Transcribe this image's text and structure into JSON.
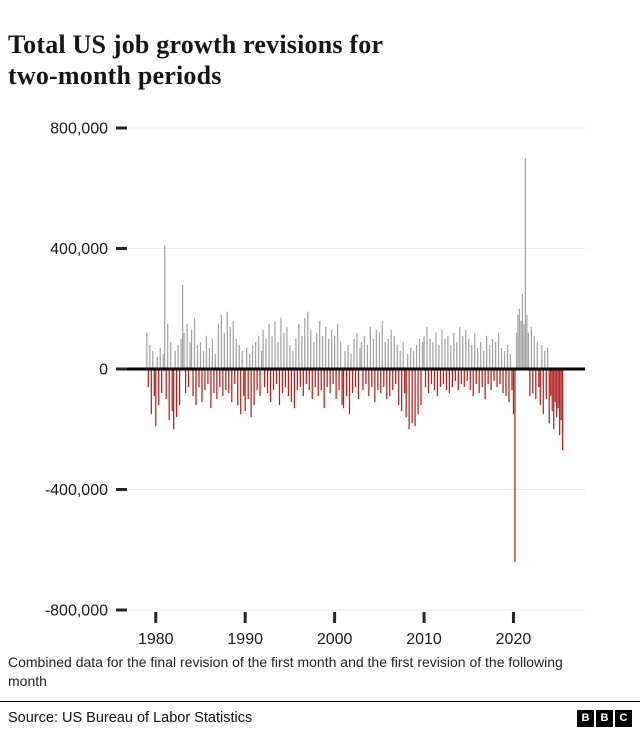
{
  "title": {
    "line1": "Total US job growth revisions for",
    "line2": "two-month periods"
  },
  "chart_data": {
    "type": "bar",
    "title": "Total US job growth revisions for two-month periods",
    "unit": "jobs",
    "start_year": 1979,
    "points_per_year": 6,
    "values_thousands": [
      120,
      -60,
      80,
      -150,
      60,
      -90,
      -190,
      40,
      -120,
      70,
      -80,
      50,
      410,
      -100,
      150,
      -170,
      90,
      -140,
      -200,
      60,
      -160,
      80,
      -120,
      100,
      280,
      120,
      -80,
      150,
      -60,
      90,
      130,
      -90,
      170,
      -120,
      80,
      -60,
      90,
      -110,
      60,
      -70,
      110,
      -50,
      70,
      -130,
      100,
      -80,
      50,
      -100,
      150,
      -60,
      180,
      -90,
      120,
      -70,
      190,
      -80,
      140,
      -110,
      160,
      -50,
      100,
      -120,
      80,
      -150,
      60,
      -90,
      -140,
      70,
      -100,
      50,
      -160,
      80,
      -120,
      90,
      -70,
      110,
      -90,
      60,
      130,
      -60,
      100,
      -80,
      150,
      -110,
      110,
      -70,
      160,
      -50,
      90,
      -120,
      170,
      -80,
      120,
      -60,
      140,
      -90,
      80,
      -110,
      60,
      -130,
      100,
      -70,
      150,
      -60,
      110,
      -90,
      170,
      -50,
      190,
      -70,
      130,
      -100,
      90,
      -60,
      120,
      -90,
      160,
      -70,
      110,
      -130,
      140,
      -60,
      100,
      -80,
      130,
      -50,
      110,
      -100,
      150,
      -70,
      90,
      -120,
      -130,
      60,
      -90,
      80,
      -150,
      50,
      -80,
      100,
      -60,
      120,
      -100,
      70,
      90,
      -70,
      110,
      -50,
      80,
      -90,
      140,
      -60,
      100,
      -110,
      130,
      -70,
      120,
      -80,
      160,
      -60,
      90,
      -100,
      100,
      -90,
      130,
      -70,
      110,
      -50,
      80,
      -120,
      60,
      -140,
      90,
      -80,
      -160,
      50,
      -200,
      70,
      -180,
      60,
      -190,
      80,
      -150,
      100,
      -120,
      90,
      110,
      -60,
      140,
      -80,
      100,
      -50,
      90,
      -70,
      120,
      -90,
      80,
      -60,
      130,
      -50,
      100,
      -70,
      110,
      -80,
      80,
      -60,
      120,
      -40,
      90,
      -70,
      140,
      -50,
      110,
      -60,
      130,
      -40,
      100,
      -70,
      80,
      -90,
      120,
      -50,
      70,
      -80,
      90,
      -60,
      60,
      -100,
      110,
      -50,
      80,
      -70,
      100,
      -40,
      90,
      -60,
      120,
      -50,
      70,
      -80,
      60,
      -90,
      80,
      -110,
      50,
      -70,
      -150,
      -640,
      120,
      180,
      200,
      160,
      250,
      150,
      700,
      180,
      120,
      -90,
      140,
      -80,
      110,
      -100,
      90,
      -60,
      -120,
      80,
      -150,
      60,
      -100,
      70,
      -180,
      -90,
      -140,
      -200,
      -110,
      -160,
      -130,
      -220,
      -170,
      -270
    ],
    "ylim_thousands": [
      -800,
      800
    ],
    "ytick_values_thousands": [
      800,
      400,
      0,
      -400,
      -800
    ],
    "ytick_labels": [
      "800,000",
      "400,000",
      "0",
      "-400,000",
      "-800,000"
    ],
    "xtick_years": [
      1980,
      1990,
      2000,
      2010,
      2020
    ],
    "xlim_years": [
      1976,
      2028
    ],
    "grid": "horizontal-light",
    "legend": "none",
    "colors": {
      "positive_bar": "#a4a4a4",
      "negative_bar": "#b2231c",
      "zero_line": "#000000",
      "tick": "#262626",
      "gridline": "#ececec"
    }
  },
  "footnote": "Combined data for the final revision of the first month and the first revision of the following month",
  "footer": {
    "source": "Source: US Bureau of Labor Statistics",
    "logo": [
      "B",
      "B",
      "C"
    ]
  }
}
